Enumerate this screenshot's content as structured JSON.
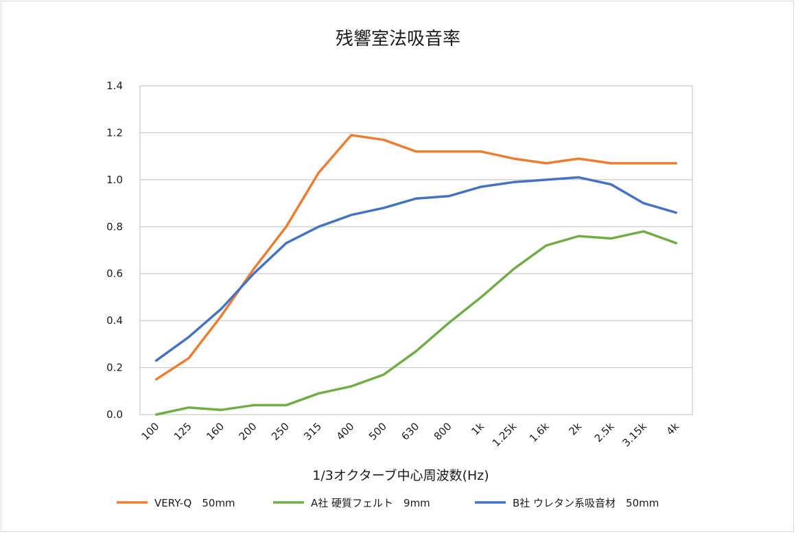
{
  "chart_data": {
    "type": "line",
    "title": "残響室法吸音率",
    "xlabel": "1/3オクターブ中心周波数(Hz)",
    "ylabel": "",
    "ylim": [
      0,
      1.4
    ],
    "yticks": [
      "0.0",
      "0.2",
      "0.4",
      "0.6",
      "0.8",
      "1.0",
      "1.2",
      "1.4"
    ],
    "grid": true,
    "legend_position": "bottom",
    "categories": [
      "100",
      "125",
      "160",
      "200",
      "250",
      "315",
      "400",
      "500",
      "630",
      "800",
      "1k",
      "1.25k",
      "1.6k",
      "2k",
      "2.5k",
      "3.15k",
      "4k"
    ],
    "series": [
      {
        "name": "VERY-Q　50mm",
        "color": "#ed7d31",
        "values": [
          0.15,
          0.24,
          0.42,
          0.62,
          0.8,
          1.03,
          1.19,
          1.17,
          1.12,
          1.12,
          1.12,
          1.09,
          1.07,
          1.09,
          1.07,
          1.07,
          1.07
        ]
      },
      {
        "name": "A社 硬質フェルト　9mm",
        "color": "#70ad47",
        "values": [
          0.0,
          0.03,
          0.02,
          0.04,
          0.04,
          0.09,
          0.12,
          0.17,
          0.27,
          0.39,
          0.5,
          0.62,
          0.72,
          0.76,
          0.75,
          0.78,
          0.73
        ]
      },
      {
        "name": "B社 ウレタン系吸音材　50mm",
        "color": "#4472c4",
        "values": [
          0.23,
          0.33,
          0.45,
          0.6,
          0.73,
          0.8,
          0.85,
          0.88,
          0.92,
          0.93,
          0.97,
          0.99,
          1.0,
          1.01,
          0.98,
          0.9,
          0.86
        ]
      }
    ]
  }
}
